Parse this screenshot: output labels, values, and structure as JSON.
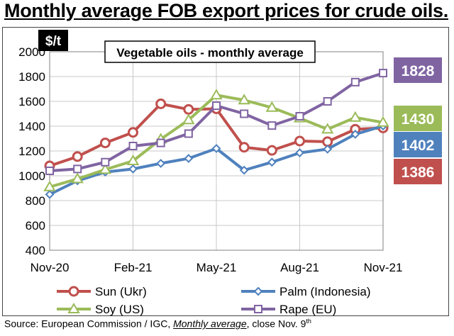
{
  "page": {
    "title": "Monthly average FOB export prices for crude oils.",
    "source_prefix": "Source: European Commission / IGC, ",
    "source_italic": "Monthly average",
    "source_suffix": ", close Nov. 9",
    "source_sup": "th"
  },
  "chart_data": {
    "type": "line",
    "title": "Vegetable oils - monthly average",
    "unit_label": "$/t",
    "ylim": [
      400,
      2000
    ],
    "ytick_values": [
      400,
      600,
      800,
      1000,
      1200,
      1400,
      1600,
      1800,
      2000
    ],
    "x_count": 13,
    "x_tick_labels": [
      {
        "index": 0,
        "label": "Nov-20"
      },
      {
        "index": 3,
        "label": "Feb-21"
      },
      {
        "index": 6,
        "label": "May-21"
      },
      {
        "index": 9,
        "label": "Aug-21"
      },
      {
        "index": 12,
        "label": "Nov-21"
      }
    ],
    "grid": true,
    "series": [
      {
        "name": "Sun (Ukr)",
        "color": "#c0504d",
        "marker": "circle",
        "values": [
          1080,
          1155,
          1265,
          1350,
          1580,
          1535,
          1540,
          1230,
          1205,
          1280,
          1275,
          1375,
          1386
        ],
        "end_label": "1386"
      },
      {
        "name": "Palm (Indonesia)",
        "color": "#4f81bd",
        "marker": "diamond",
        "values": [
          850,
          960,
          1030,
          1055,
          1100,
          1140,
          1220,
          1045,
          1110,
          1185,
          1215,
          1335,
          1402
        ],
        "end_label": "1402"
      },
      {
        "name": "Soy (US)",
        "color": "#9bbb59",
        "marker": "triangle",
        "values": [
          910,
          975,
          1050,
          1120,
          1295,
          1450,
          1650,
          1610,
          1550,
          1465,
          1375,
          1470,
          1430
        ],
        "end_label": "1430"
      },
      {
        "name": "Rape (EU)",
        "color": "#8064a2",
        "marker": "square",
        "values": [
          1040,
          1055,
          1110,
          1240,
          1265,
          1340,
          1565,
          1500,
          1405,
          1480,
          1600,
          1755,
          1828
        ],
        "end_label": "1828"
      }
    ]
  }
}
